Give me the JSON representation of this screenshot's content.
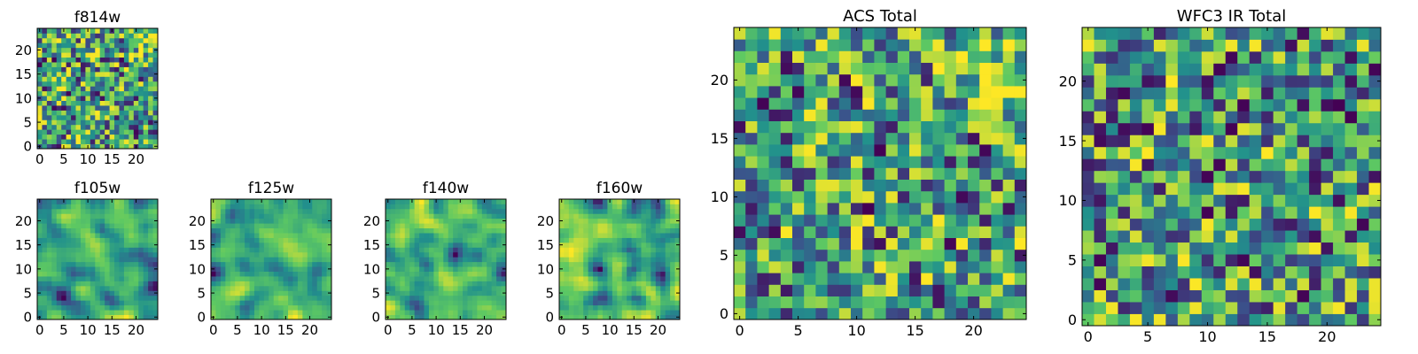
{
  "colormap": {
    "name": "viridis",
    "stops": [
      "#440154",
      "#3b528b",
      "#21918c",
      "#5ec962",
      "#fde725"
    ]
  },
  "chart_data": [
    {
      "type": "heatmap",
      "title": "f814w",
      "size": 25,
      "xticks": [
        "0",
        "5",
        "10",
        "15",
        "20"
      ],
      "yticks": [
        "0",
        "5",
        "10",
        "15",
        "20"
      ],
      "xlim": [
        0,
        24
      ],
      "ylim": [
        0,
        24
      ],
      "value_range": [
        0,
        1
      ],
      "pattern": "fine per-pixel noise, mostly green-teal, brighter yellow patch near top-right",
      "grid": false
    },
    {
      "type": "heatmap",
      "title": "f105w",
      "size": 25,
      "xticks": [
        "0",
        "5",
        "10",
        "15",
        "20"
      ],
      "yticks": [
        "0",
        "5",
        "10",
        "15",
        "20"
      ],
      "xlim": [
        0,
        24
      ],
      "ylim": [
        0,
        24
      ],
      "value_range": [
        0,
        1
      ],
      "pattern": "smooth blotchy structure, yellow-green dominated with scattered dark blue spots",
      "grid": false
    },
    {
      "type": "heatmap",
      "title": "f125w",
      "size": 25,
      "xticks": [
        "0",
        "5",
        "10",
        "15",
        "20"
      ],
      "yticks": [
        "0",
        "5",
        "10",
        "15",
        "20"
      ],
      "xlim": [
        0,
        24
      ],
      "ylim": [
        0,
        24
      ],
      "value_range": [
        0,
        1
      ],
      "pattern": "smooth blotchy structure with several dark purple streaks",
      "grid": false
    },
    {
      "type": "heatmap",
      "title": "f140w",
      "size": 25,
      "xticks": [
        "0",
        "5",
        "10",
        "15",
        "20"
      ],
      "yticks": [
        "0",
        "5",
        "10",
        "15",
        "20"
      ],
      "xlim": [
        0,
        24
      ],
      "ylim": [
        0,
        24
      ],
      "value_range": [
        0,
        1
      ],
      "pattern": "smooth blotchy structure, yellow patches with dark spots near right edge",
      "grid": false
    },
    {
      "type": "heatmap",
      "title": "f160w",
      "size": 25,
      "xticks": [
        "0",
        "5",
        "10",
        "15",
        "20"
      ],
      "yticks": [
        "0",
        "5",
        "10",
        "15",
        "20"
      ],
      "xlim": [
        0,
        24
      ],
      "ylim": [
        0,
        24
      ],
      "value_range": [
        0,
        1
      ],
      "pattern": "smooth blotchy structure, bright yellow with dark purple spots",
      "grid": false
    },
    {
      "type": "heatmap",
      "title": "ACS Total",
      "size": 25,
      "xticks": [
        "0",
        "5",
        "10",
        "15",
        "20"
      ],
      "yticks": [
        "0",
        "5",
        "10",
        "15",
        "20"
      ],
      "xlim": [
        0,
        24
      ],
      "ylim": [
        0,
        24
      ],
      "value_range": [
        0,
        1
      ],
      "pattern": "per-pixel noise, green dominant, yellow patch upper right, few dark purple pixels",
      "grid": false
    },
    {
      "type": "heatmap",
      "title": "WFC3 IR Total",
      "size": 25,
      "xticks": [
        "0",
        "5",
        "10",
        "15",
        "20"
      ],
      "yticks": [
        "0",
        "5",
        "10",
        "15",
        "20"
      ],
      "xlim": [
        0,
        24
      ],
      "ylim": [
        0,
        24
      ],
      "value_range": [
        0,
        1
      ],
      "pattern": "per-pixel noise, green-teal dominant, scattered dark purple pixels, dark pair at bottom near x=15",
      "grid": false
    }
  ]
}
